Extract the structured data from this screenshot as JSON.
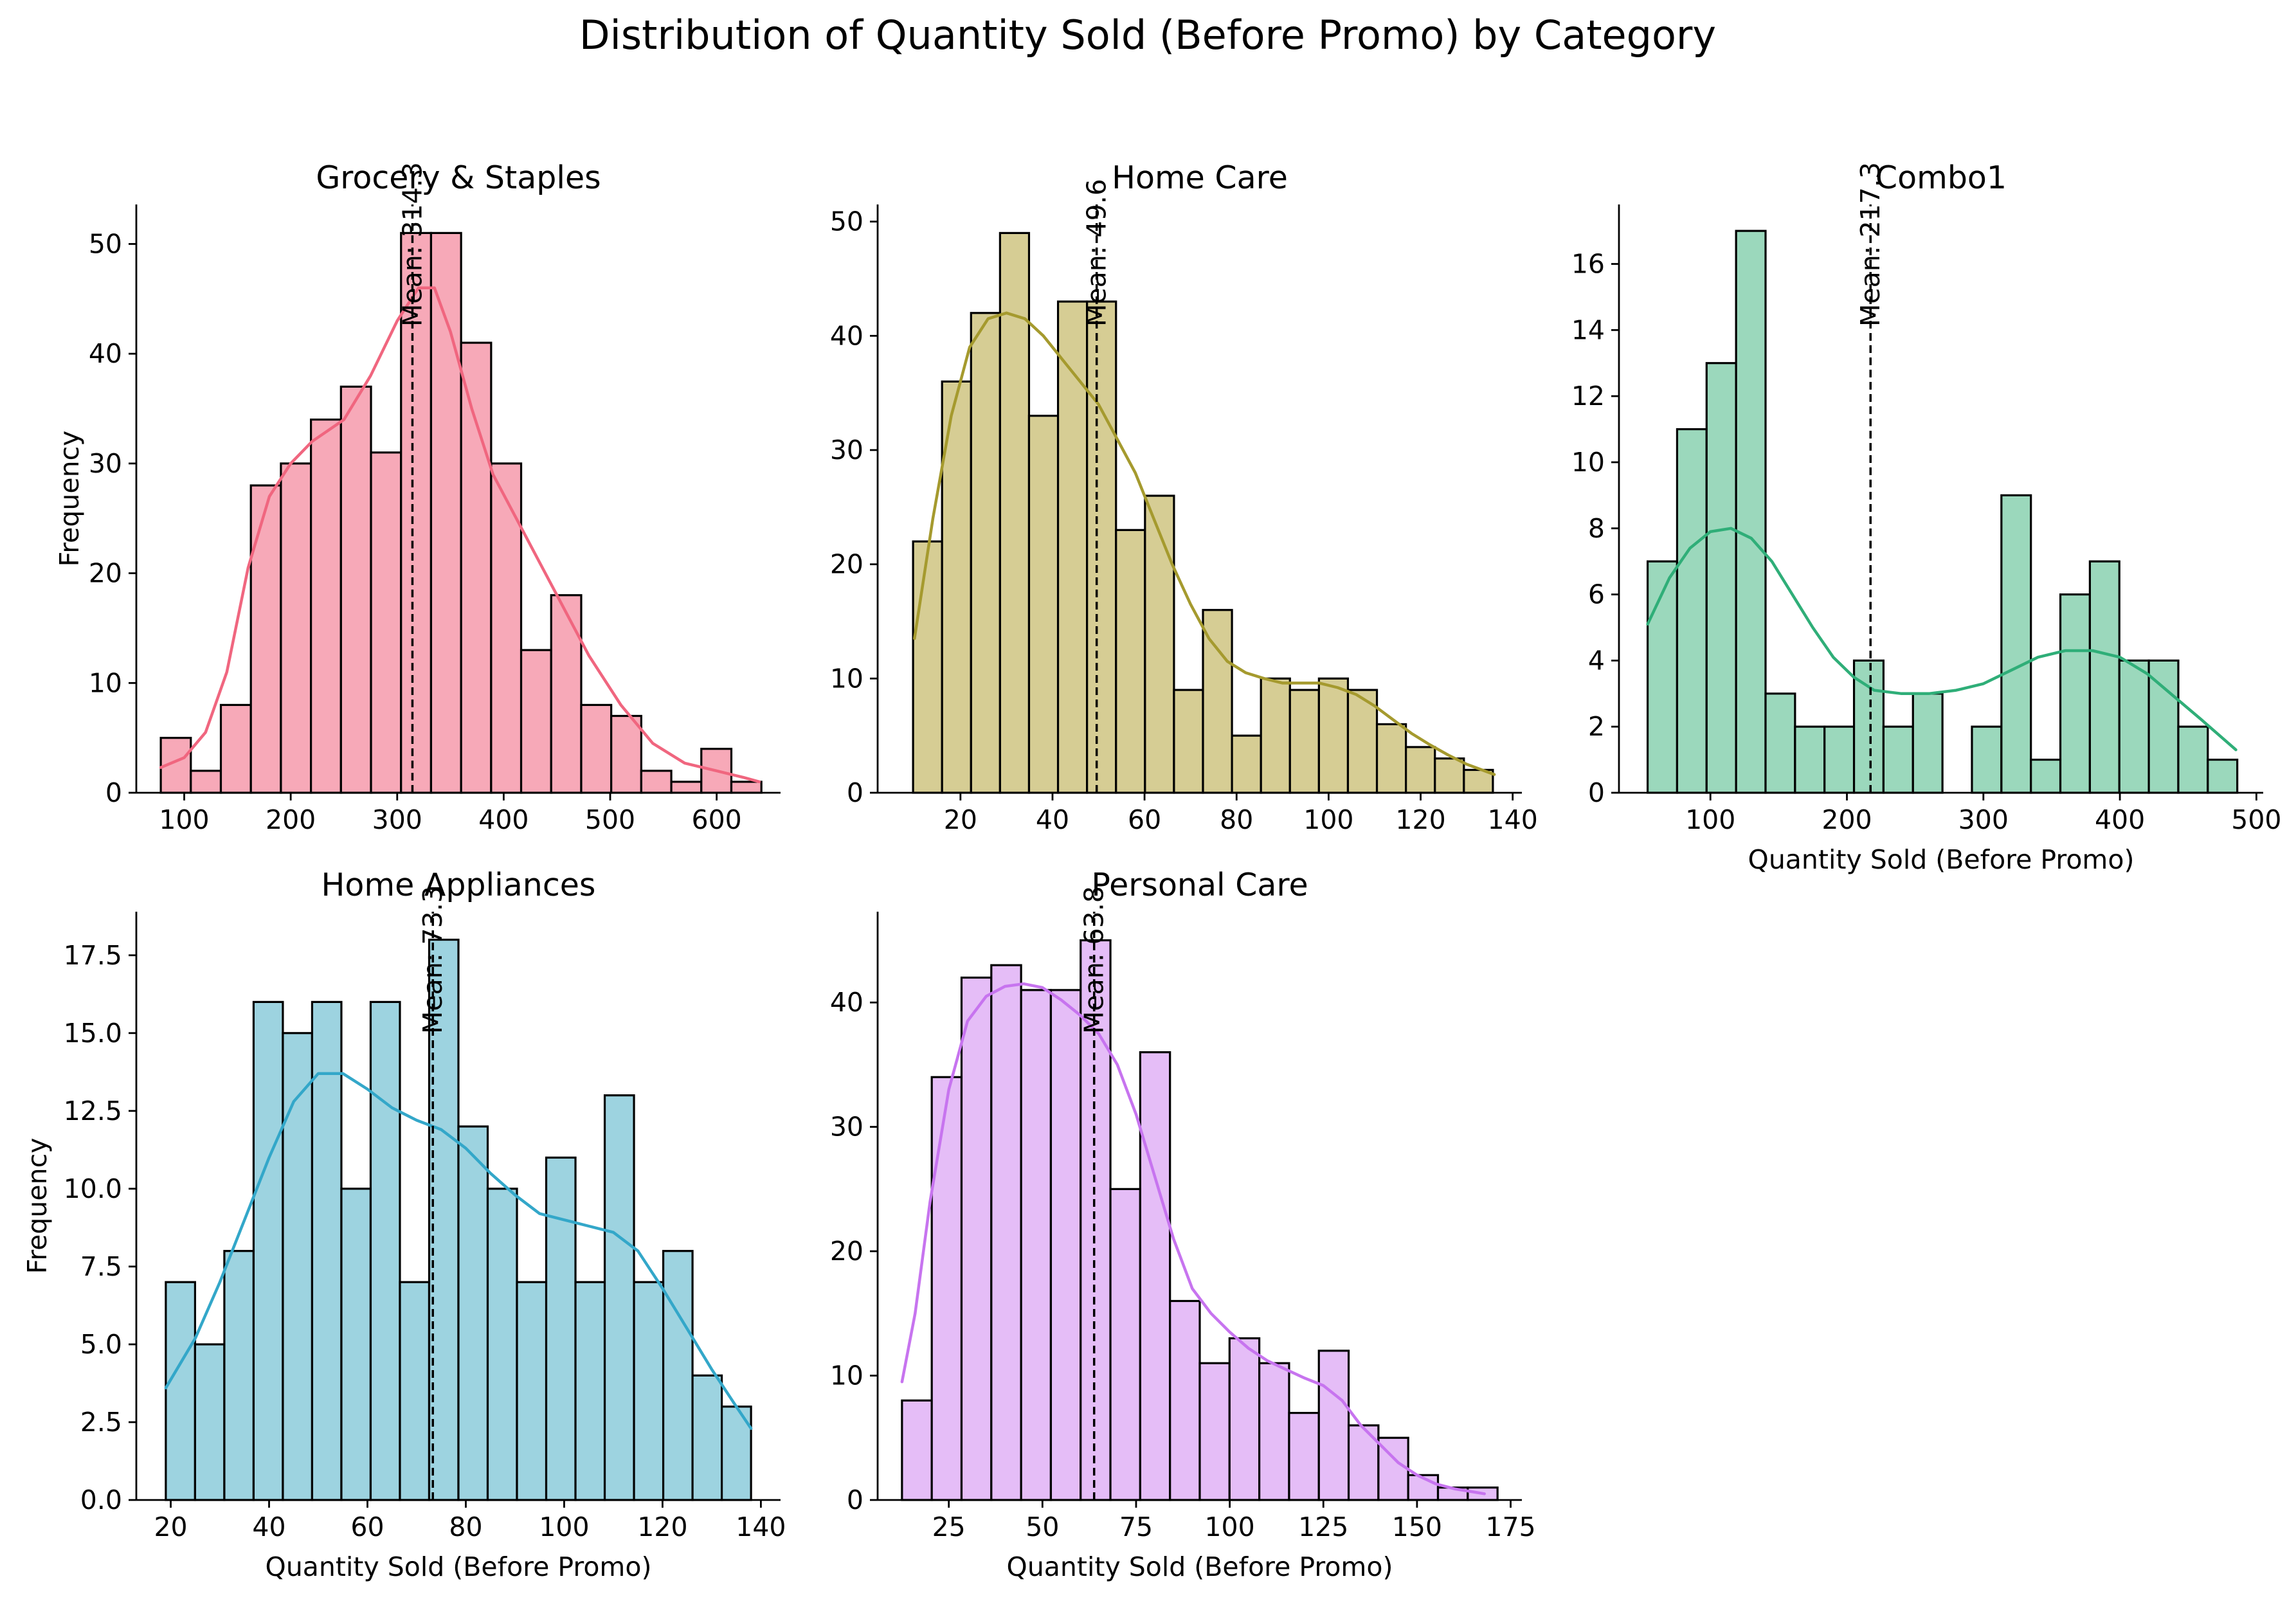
{
  "figure_title": "Distribution of Quantity Sold (Before Promo) by Category",
  "chart_data": [
    {
      "type": "histogram",
      "title": "Grocery & Staples",
      "xlabel": "",
      "ylabel": "Frequency",
      "color": "#f7a9b8",
      "kde_color": "#f0667f",
      "xlim": [
        55,
        660
      ],
      "ylim": [
        0,
        53.6
      ],
      "xticks": [
        100,
        200,
        300,
        400,
        500,
        600
      ],
      "yticks": [
        0,
        10,
        20,
        30,
        40,
        50
      ],
      "bin_start": 78,
      "bin_width": 28.2,
      "counts": [
        5,
        2,
        8,
        28,
        30,
        34,
        37,
        31,
        51,
        51,
        41,
        30,
        13,
        18,
        8,
        7,
        2,
        1,
        4,
        1
      ],
      "kde": [
        [
          78,
          2.3
        ],
        [
          100,
          3.2
        ],
        [
          120,
          5.5
        ],
        [
          140,
          11
        ],
        [
          160,
          20.5
        ],
        [
          180,
          27
        ],
        [
          200,
          30
        ],
        [
          220,
          32
        ],
        [
          250,
          34
        ],
        [
          275,
          38
        ],
        [
          300,
          43
        ],
        [
          320,
          46
        ],
        [
          335,
          46
        ],
        [
          350,
          42
        ],
        [
          370,
          35
        ],
        [
          390,
          29
        ],
        [
          420,
          23.5
        ],
        [
          450,
          18
        ],
        [
          480,
          12.5
        ],
        [
          510,
          8
        ],
        [
          540,
          4.5
        ],
        [
          570,
          2.7
        ],
        [
          600,
          2
        ],
        [
          625,
          1.4
        ],
        [
          640,
          1
        ]
      ],
      "mean": 314.3,
      "mean_label": "Mean: 314.3"
    },
    {
      "type": "histogram",
      "title": "Home Care",
      "xlabel": "",
      "ylabel": "",
      "color": "#d6cd94",
      "kde_color": "#a59a2e",
      "xlim": [
        2,
        142
      ],
      "ylim": [
        0,
        51.5
      ],
      "xticks": [
        20,
        40,
        60,
        80,
        100,
        120,
        140
      ],
      "yticks": [
        0,
        10,
        20,
        30,
        40,
        50
      ],
      "bin_start": 9.7,
      "bin_width": 6.3,
      "counts": [
        22,
        36,
        42,
        49,
        33,
        43,
        43,
        23,
        26,
        9,
        16,
        5,
        10,
        9,
        10,
        9,
        6,
        4,
        3,
        2
      ],
      "kde": [
        [
          10,
          13.5
        ],
        [
          14,
          24
        ],
        [
          18,
          33
        ],
        [
          22,
          39
        ],
        [
          26,
          41.5
        ],
        [
          30,
          42
        ],
        [
          34,
          41.5
        ],
        [
          38,
          40
        ],
        [
          42,
          38
        ],
        [
          46,
          36
        ],
        [
          50,
          34
        ],
        [
          54,
          31
        ],
        [
          58,
          28
        ],
        [
          62,
          24
        ],
        [
          66,
          20
        ],
        [
          70,
          16.5
        ],
        [
          74,
          13.5
        ],
        [
          78,
          11.5
        ],
        [
          82,
          10.5
        ],
        [
          86,
          10
        ],
        [
          90,
          9.6
        ],
        [
          94,
          9.6
        ],
        [
          98,
          9.6
        ],
        [
          102,
          9.2
        ],
        [
          106,
          8.6
        ],
        [
          110,
          7.6
        ],
        [
          114,
          6.4
        ],
        [
          118,
          5.2
        ],
        [
          122,
          4.2
        ],
        [
          126,
          3.3
        ],
        [
          130,
          2.5
        ],
        [
          136,
          1.6
        ]
      ],
      "mean": 49.6,
      "mean_label": "Mean: 49.6"
    },
    {
      "type": "histogram",
      "title": "Combo1",
      "xlabel": "Quantity Sold (Before Promo)",
      "ylabel": "",
      "color": "#9bd8bc",
      "kde_color": "#2fae78",
      "xlim": [
        33,
        505
      ],
      "ylim": [
        0,
        17.8
      ],
      "xticks": [
        100,
        200,
        300,
        400,
        500
      ],
      "yticks": [
        0,
        2,
        4,
        6,
        8,
        10,
        12,
        14,
        16
      ],
      "bin_start": 54,
      "bin_width": 21.6,
      "counts": [
        7,
        11,
        13,
        17,
        3,
        2,
        2,
        4,
        2,
        3,
        0,
        2,
        9,
        1,
        6,
        7,
        4,
        4,
        2,
        1
      ],
      "kde": [
        [
          54,
          5.1
        ],
        [
          70,
          6.5
        ],
        [
          85,
          7.4
        ],
        [
          100,
          7.9
        ],
        [
          115,
          8
        ],
        [
          130,
          7.7
        ],
        [
          145,
          7
        ],
        [
          160,
          6
        ],
        [
          175,
          5
        ],
        [
          190,
          4.1
        ],
        [
          205,
          3.5
        ],
        [
          220,
          3.1
        ],
        [
          240,
          3
        ],
        [
          260,
          3
        ],
        [
          280,
          3.1
        ],
        [
          300,
          3.3
        ],
        [
          320,
          3.7
        ],
        [
          340,
          4.1
        ],
        [
          360,
          4.3
        ],
        [
          380,
          4.3
        ],
        [
          400,
          4.1
        ],
        [
          420,
          3.6
        ],
        [
          440,
          2.9
        ],
        [
          460,
          2.2
        ],
        [
          485,
          1.3
        ]
      ],
      "mean": 217.3,
      "mean_label": "Mean: 217.3"
    },
    {
      "type": "histogram",
      "title": "Home Appliances",
      "xlabel": "Quantity Sold (Before Promo)",
      "ylabel": "Frequency",
      "color": "#9dd3e0",
      "kde_color": "#33a7c9",
      "xlim": [
        13,
        144
      ],
      "ylim": [
        0,
        18.9
      ],
      "xticks": [
        20,
        40,
        60,
        80,
        100,
        120,
        140
      ],
      "yticks": [
        "0.0",
        "2.5",
        "5.0",
        "7.5",
        "10.0",
        "12.5",
        "15.0",
        "17.5"
      ],
      "bin_start": 19,
      "bin_width": 5.95,
      "counts": [
        7,
        5,
        8,
        16,
        15,
        16,
        10,
        16,
        7,
        18,
        12,
        10,
        7,
        11,
        7,
        13,
        7,
        8,
        4,
        3
      ],
      "kde": [
        [
          19,
          3.6
        ],
        [
          25,
          5.2
        ],
        [
          30,
          7
        ],
        [
          35,
          9
        ],
        [
          40,
          11
        ],
        [
          45,
          12.8
        ],
        [
          50,
          13.7
        ],
        [
          55,
          13.7
        ],
        [
          60,
          13.2
        ],
        [
          65,
          12.6
        ],
        [
          70,
          12.2
        ],
        [
          75,
          11.9
        ],
        [
          80,
          11.3
        ],
        [
          85,
          10.5
        ],
        [
          90,
          9.8
        ],
        [
          95,
          9.2
        ],
        [
          100,
          9
        ],
        [
          105,
          8.8
        ],
        [
          110,
          8.6
        ],
        [
          115,
          8
        ],
        [
          120,
          6.8
        ],
        [
          125,
          5.5
        ],
        [
          130,
          4.2
        ],
        [
          135,
          3
        ],
        [
          138,
          2.3
        ]
      ],
      "mean": 73.3,
      "mean_label": "Mean: 73.3"
    },
    {
      "type": "histogram",
      "title": "Personal Care",
      "xlabel": "Quantity Sold (Before Promo)",
      "ylabel": "",
      "color": "#e5bdf7",
      "kde_color": "#c774ef",
      "xlim": [
        6,
        178
      ],
      "ylim": [
        0,
        47.3
      ],
      "xticks": [
        25,
        50,
        75,
        100,
        125,
        150,
        175
      ],
      "yticks": [
        0,
        10,
        20,
        30,
        40
      ],
      "bin_start": 12.5,
      "bin_width": 7.95,
      "counts": [
        8,
        34,
        42,
        43,
        41,
        41,
        45,
        25,
        36,
        16,
        11,
        13,
        11,
        7,
        12,
        6,
        5,
        2,
        1,
        1
      ],
      "kde": [
        [
          12.5,
          9.5
        ],
        [
          16,
          15
        ],
        [
          20,
          24
        ],
        [
          25,
          33
        ],
        [
          30,
          38.5
        ],
        [
          35,
          40.5
        ],
        [
          40,
          41.3
        ],
        [
          45,
          41.5
        ],
        [
          50,
          41.2
        ],
        [
          55,
          40.2
        ],
        [
          60,
          39
        ],
        [
          65,
          37.5
        ],
        [
          70,
          35
        ],
        [
          75,
          31
        ],
        [
          80,
          26
        ],
        [
          85,
          21
        ],
        [
          90,
          17
        ],
        [
          95,
          15
        ],
        [
          100,
          13.5
        ],
        [
          105,
          12.2
        ],
        [
          110,
          11.2
        ],
        [
          115,
          10.5
        ],
        [
          120,
          9.8
        ],
        [
          125,
          9.2
        ],
        [
          130,
          8
        ],
        [
          135,
          6
        ],
        [
          140,
          4.5
        ],
        [
          145,
          3
        ],
        [
          150,
          2
        ],
        [
          155,
          1.3
        ],
        [
          160,
          0.9
        ],
        [
          168,
          0.5
        ]
      ],
      "mean": 63.8,
      "mean_label": "Mean: 63.8"
    }
  ]
}
